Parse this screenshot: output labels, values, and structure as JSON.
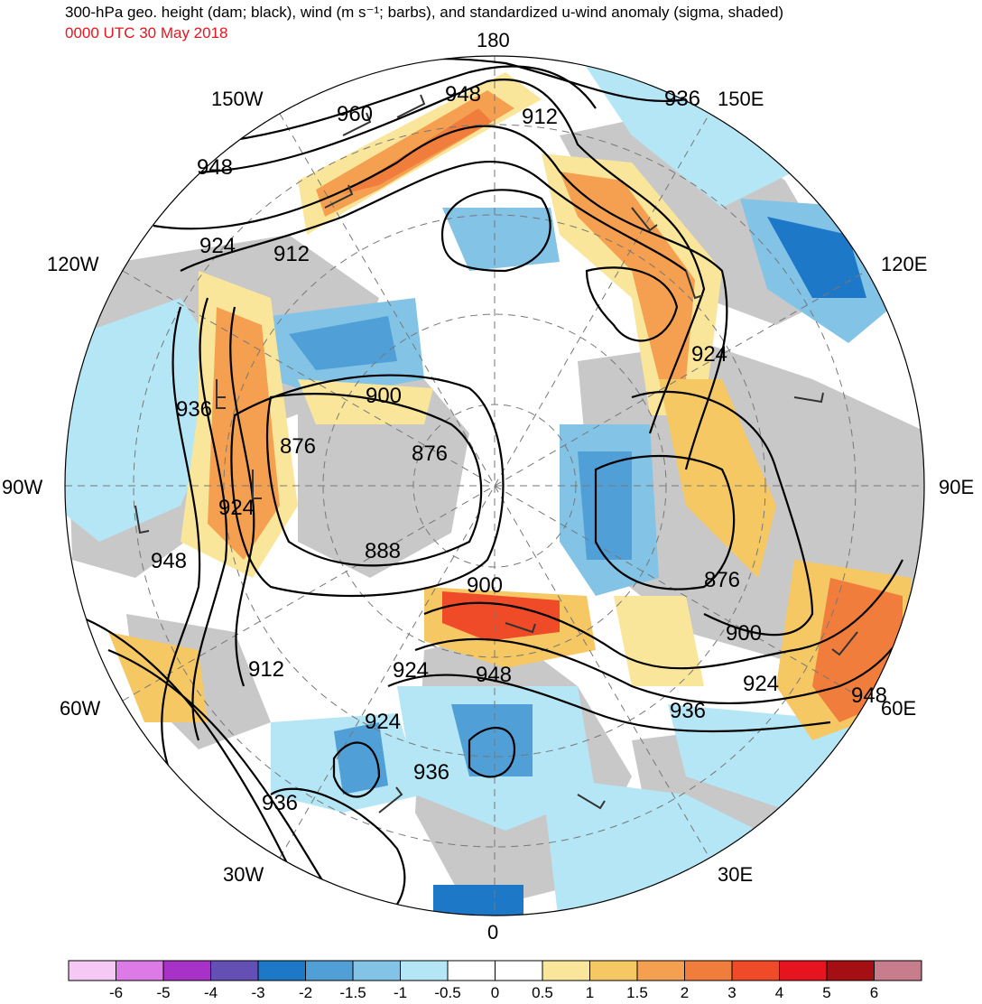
{
  "title": "300-hPa geo. height (dam; black), wind (m s⁻¹; barbs), and standardized u-wind anomaly (sigma, shaded)",
  "subtitle": "0000 UTC 30 May 2018",
  "longitude_labels": {
    "top": "180",
    "bottom": "0",
    "left": "90W",
    "right": "90E",
    "w150": "150W",
    "e150": "150E",
    "w120": "120W",
    "e120": "120E",
    "w60": "60W",
    "e60": "60E",
    "w30": "30W",
    "e30": "30E"
  },
  "contour_labels": [
    "948",
    "960",
    "912",
    "936",
    "948",
    "924",
    "912",
    "900",
    "876",
    "876",
    "936",
    "924",
    "948",
    "888",
    "900",
    "912",
    "924",
    "924",
    "948",
    "936",
    "936",
    "924",
    "876",
    "900",
    "924",
    "936",
    "948"
  ],
  "colorbar": {
    "labels": [
      "-6",
      "-5",
      "-4",
      "-3",
      "-2",
      "-1.5",
      "-1",
      "-0.5",
      "0",
      "0.5",
      "1",
      "1.5",
      "2",
      "3",
      "4",
      "5",
      "6"
    ],
    "colors": [
      "#f5c8f5",
      "#dc7ae6",
      "#a832c8",
      "#6450b4",
      "#1e78c8",
      "#50a0d7",
      "#82c3e6",
      "#b4e6f5",
      "#ffffff",
      "#ffffff",
      "#fae69b",
      "#f5c864",
      "#f5a050",
      "#f07d3c",
      "#f04b28",
      "#e6141e",
      "#a50f14",
      "#c87d8c"
    ]
  },
  "colors": {
    "land": "#c8c8c8",
    "contour": "#000000",
    "subtitle": "#e8141e"
  }
}
